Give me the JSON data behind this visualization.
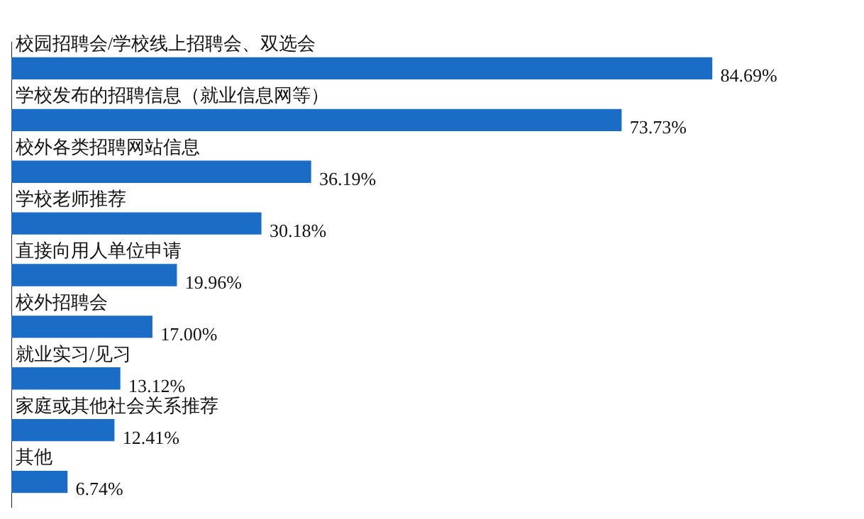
{
  "chart_data": {
    "type": "bar",
    "orientation": "horizontal",
    "categories": [
      "校园招聘会/学校线上招聘会、双选会",
      "学校发布的招聘信息（就业信息网等）",
      "校外各类招聘网站信息",
      "学校老师推荐",
      "直接向用人单位申请",
      "校外招聘会",
      "就业实习/见习",
      "家庭或其他社会关系推荐",
      "其他"
    ],
    "values": [
      84.69,
      73.73,
      36.19,
      30.18,
      19.96,
      17.0,
      13.12,
      12.41,
      6.74
    ],
    "value_labels": [
      "84.69%",
      "73.73%",
      "36.19%",
      "30.18%",
      "19.96%",
      "17.00%",
      "13.12%",
      "12.41%",
      "6.74%"
    ],
    "color": "#1a6cc4",
    "grid": false,
    "legend": false,
    "tick_labels": false
  }
}
